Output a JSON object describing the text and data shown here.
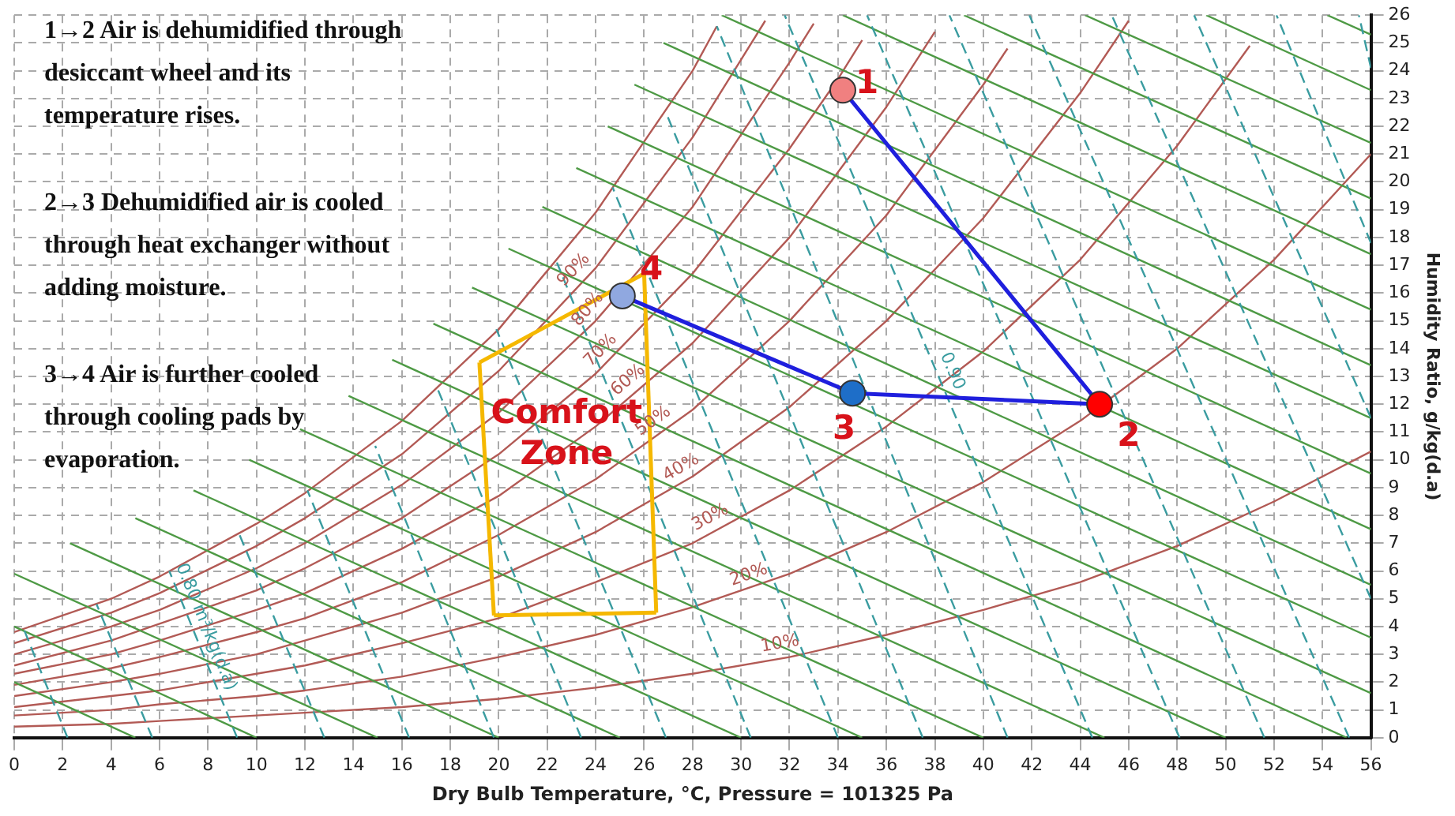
{
  "chart_data": {
    "type": "line",
    "xlabel": "Dry Bulb Temperature, °C, Pressure = 101325 Pa",
    "ylabel": "Humidity Ratio, g/kg(d.a)",
    "xlim": [
      0,
      56
    ],
    "xticks": [
      0,
      2,
      4,
      6,
      8,
      10,
      12,
      14,
      16,
      18,
      20,
      22,
      24,
      26,
      28,
      30,
      32,
      34,
      36,
      38,
      40,
      42,
      44,
      46,
      48,
      50,
      52,
      54,
      56
    ],
    "ylim": [
      0,
      26
    ],
    "yticks": [
      0,
      1,
      2,
      3,
      4,
      5,
      6,
      7,
      8,
      9,
      10,
      11,
      12,
      13,
      14,
      15,
      16,
      17,
      18,
      19,
      20,
      21,
      22,
      23,
      24,
      25,
      26
    ],
    "grid": true,
    "annotations": [
      "1→2 Air is dehumidified through desiccant wheel and its temperature rises.",
      "2→3 Dehumidified air is cooled through heat exchanger without adding moisture.",
      "3→4 Air is further cooled through cooling pads by evaporation.",
      {
        "text": "90%",
        "x": 23.5,
        "y": 16.5
      },
      {
        "text": "80%",
        "x": 24.1,
        "y": 15.1
      },
      {
        "text": "70%",
        "x": 24.6,
        "y": 13.6
      },
      {
        "text": "60%",
        "x": 25.7,
        "y": 12.5
      },
      {
        "text": "50%",
        "x": 26.7,
        "y": 11.0
      },
      {
        "text": "40%",
        "x": 27.8,
        "y": 9.3
      },
      {
        "text": "30%",
        "x": 29.0,
        "y": 7.5
      },
      {
        "text": "20%",
        "x": 30.5,
        "y": 5.4
      },
      {
        "text": "10%",
        "x": 31.7,
        "y": 2.9
      },
      {
        "text": "0.80 m³/kg(d.a)",
        "x": 7.4,
        "y": 3.8
      },
      {
        "text": "0.90",
        "x": 38.2,
        "y": 13.0
      },
      {
        "text": "1",
        "x": 35.2,
        "y": 23.5
      },
      {
        "text": "2",
        "x": 46.0,
        "y": 10.8
      },
      {
        "text": "3",
        "x": 34.6,
        "y": 12.4
      },
      {
        "text": "4",
        "x": 26.3,
        "y": 16.8
      },
      {
        "text": "Comfort Zone",
        "x": 22.8,
        "y": 10.9
      }
    ],
    "series": [
      {
        "color": "#b25a55",
        "x": [
          0,
          4,
          6,
          10,
          12,
          16,
          20,
          24,
          28,
          29
        ],
        "values": [
          3.8,
          5.0,
          5.8,
          7.7,
          8.8,
          11.4,
          14.7,
          18.9,
          24.0,
          25.6
        ]
      },
      {
        "color": "#b25a55",
        "x": [
          0,
          4,
          6,
          10,
          12,
          16,
          20,
          24,
          28,
          30,
          31
        ],
        "values": [
          3.4,
          4.5,
          5.2,
          6.9,
          7.9,
          10.2,
          13.2,
          16.9,
          21.6,
          24.4,
          25.8
        ]
      },
      {
        "color": "#b25a55",
        "x": [
          0,
          4,
          6,
          10,
          12,
          16,
          20,
          24,
          28,
          32,
          33
        ],
        "values": [
          3.0,
          4.0,
          4.6,
          6.1,
          7.0,
          9.1,
          11.7,
          15.0,
          19.1,
          24.3,
          25.7
        ]
      },
      {
        "color": "#b25a55",
        "x": [
          0,
          4,
          6,
          10,
          12,
          16,
          20,
          24,
          28,
          32,
          34,
          35
        ],
        "values": [
          2.6,
          3.5,
          4.1,
          5.3,
          6.1,
          7.9,
          10.2,
          13.1,
          16.7,
          21.2,
          23.7,
          25.1
        ]
      },
      {
        "color": "#b25a55",
        "x": [
          0,
          4,
          6,
          10,
          12,
          16,
          20,
          24,
          28,
          32,
          36,
          38
        ],
        "values": [
          2.3,
          3.0,
          3.5,
          4.6,
          5.2,
          6.8,
          8.7,
          11.2,
          14.2,
          18.0,
          22.7,
          25.4
        ]
      },
      {
        "color": "#b25a55",
        "x": [
          0,
          4,
          6,
          10,
          12,
          16,
          20,
          24,
          28,
          32,
          36,
          40,
          41
        ],
        "values": [
          1.9,
          2.5,
          2.9,
          3.8,
          4.3,
          5.6,
          7.3,
          9.3,
          11.8,
          15.0,
          18.8,
          23.5,
          24.8
        ]
      },
      {
        "color": "#b25a55",
        "x": [
          0,
          4,
          6,
          10,
          12,
          16,
          20,
          24,
          28,
          32,
          36,
          40,
          44,
          46
        ],
        "values": [
          1.5,
          2.0,
          2.3,
          3.0,
          3.5,
          4.5,
          5.8,
          7.4,
          9.4,
          11.9,
          15.0,
          18.7,
          23.2,
          25.8
        ]
      },
      {
        "color": "#b25a55",
        "x": [
          0,
          4,
          6,
          10,
          12,
          16,
          20,
          24,
          28,
          32,
          36,
          40,
          44,
          48,
          51
        ],
        "values": [
          1.1,
          1.5,
          1.7,
          2.3,
          2.6,
          3.4,
          4.3,
          5.6,
          7.0,
          8.9,
          11.2,
          13.9,
          17.2,
          21.3,
          24.9
        ]
      },
      {
        "color": "#b25a55",
        "x": [
          0,
          4,
          6,
          10,
          12,
          16,
          20,
          24,
          28,
          32,
          36,
          40,
          44,
          48,
          52,
          56
        ],
        "values": [
          0.8,
          1.0,
          1.2,
          1.5,
          1.7,
          2.2,
          2.9,
          3.7,
          4.7,
          5.9,
          7.4,
          9.2,
          11.4,
          14.0,
          17.2,
          21.0
        ]
      },
      {
        "color": "#b25a55",
        "x": [
          0,
          4,
          6,
          10,
          12,
          16,
          20,
          24,
          28,
          32,
          36,
          40,
          44,
          48,
          52,
          56
        ],
        "values": [
          0.4,
          0.5,
          0.6,
          0.8,
          0.9,
          1.1,
          1.4,
          1.8,
          2.3,
          2.9,
          3.7,
          4.6,
          5.6,
          6.9,
          8.5,
          10.3
        ]
      },
      {
        "color": "#4e9a45",
        "x": [
          0,
          5
        ],
        "values": [
          2.0,
          0
        ]
      },
      {
        "color": "#4e9a45",
        "x": [
          0,
          10
        ],
        "values": [
          4.0,
          0
        ]
      },
      {
        "color": "#4e9a45",
        "x": [
          0,
          15
        ],
        "values": [
          5.9,
          0
        ]
      },
      {
        "color": "#4e9a45",
        "x": [
          2.3,
          20
        ],
        "values": [
          7.0,
          0
        ]
      },
      {
        "color": "#4e9a45",
        "x": [
          5.0,
          25
        ],
        "values": [
          7.9,
          0
        ]
      },
      {
        "color": "#4e9a45",
        "x": [
          7.4,
          30
        ],
        "values": [
          8.9,
          0
        ]
      },
      {
        "color": "#4e9a45",
        "x": [
          9.7,
          35
        ],
        "values": [
          10.0,
          0
        ]
      },
      {
        "color": "#4e9a45",
        "x": [
          11.8,
          40
        ],
        "values": [
          11.1,
          0
        ]
      },
      {
        "color": "#4e9a45",
        "x": [
          13.8,
          45
        ],
        "values": [
          12.3,
          0
        ]
      },
      {
        "color": "#4e9a45",
        "x": [
          15.6,
          50
        ],
        "values": [
          13.6,
          0
        ]
      },
      {
        "color": "#4e9a45",
        "x": [
          17.3,
          55
        ],
        "values": [
          14.9,
          0
        ]
      },
      {
        "color": "#4e9a45",
        "x": [
          18.9,
          56
        ],
        "values": [
          16.2,
          1.6
        ]
      },
      {
        "color": "#4e9a45",
        "x": [
          20.4,
          56
        ],
        "values": [
          17.6,
          3.6
        ]
      },
      {
        "color": "#4e9a45",
        "x": [
          21.8,
          56
        ],
        "values": [
          19.1,
          5.5
        ]
      },
      {
        "color": "#4e9a45",
        "x": [
          23.2,
          56
        ],
        "values": [
          20.5,
          7.5
        ]
      },
      {
        "color": "#4e9a45",
        "x": [
          24.5,
          56
        ],
        "values": [
          22.0,
          9.5
        ]
      },
      {
        "color": "#4e9a45",
        "x": [
          25.6,
          56
        ],
        "values": [
          23.5,
          11.5
        ]
      },
      {
        "color": "#4e9a45",
        "x": [
          26.8,
          56
        ],
        "values": [
          25.0,
          13.4
        ]
      },
      {
        "color": "#4e9a45",
        "x": [
          29.2,
          56
        ],
        "values": [
          26,
          15.4
        ]
      },
      {
        "color": "#4e9a45",
        "x": [
          34.2,
          56
        ],
        "values": [
          26,
          17.4
        ]
      },
      {
        "color": "#4e9a45",
        "x": [
          39.2,
          56
        ],
        "values": [
          26,
          19.4
        ]
      },
      {
        "color": "#4e9a45",
        "x": [
          44.2,
          56
        ],
        "values": [
          26,
          21.4
        ]
      },
      {
        "color": "#4e9a45",
        "x": [
          49.2,
          56
        ],
        "values": [
          26,
          23.3
        ]
      },
      {
        "color": "#4e9a45",
        "x": [
          54.2,
          56
        ],
        "values": [
          26,
          25.3
        ]
      },
      {
        "color": "#3a9ca0",
        "line_style": "dashed",
        "x": [
          2.2,
          0.4
        ],
        "values": [
          0,
          3.9
        ]
      },
      {
        "color": "#3a9ca0",
        "line_style": "dashed",
        "x": [
          5.7,
          3.4
        ],
        "values": [
          0,
          4.8
        ]
      },
      {
        "color": "#3a9ca0",
        "line_style": "dashed",
        "x": [
          9.2,
          6.4
        ],
        "values": [
          0,
          6.0
        ]
      },
      {
        "color": "#3a9ca0",
        "line_style": "dashed",
        "x": [
          12.8,
          9.3
        ],
        "values": [
          0,
          7.3
        ]
      },
      {
        "color": "#3a9ca0",
        "line_style": "dashed",
        "x": [
          16.3,
          12.1
        ],
        "values": [
          0,
          8.9
        ]
      },
      {
        "color": "#3a9ca0",
        "line_style": "dashed",
        "x": [
          19.8,
          14.9
        ],
        "values": [
          0,
          10.5
        ]
      },
      {
        "color": "#3a9ca0",
        "line_style": "dashed",
        "x": [
          23.4,
          17.5
        ],
        "values": [
          0,
          12.5
        ]
      },
      {
        "color": "#3a9ca0",
        "line_style": "dashed",
        "x": [
          26.9,
          19.9
        ],
        "values": [
          0,
          14.7
        ]
      },
      {
        "color": "#3a9ca0",
        "line_style": "dashed",
        "x": [
          30.4,
          22.4
        ],
        "values": [
          0,
          17.1
        ]
      },
      {
        "color": "#3a9ca0",
        "line_style": "dashed",
        "x": [
          34.0,
          24.7
        ],
        "values": [
          0,
          19.8
        ]
      },
      {
        "color": "#3a9ca0",
        "line_style": "dashed",
        "x": [
          37.5,
          26.9
        ],
        "values": [
          0,
          22.5
        ]
      },
      {
        "color": "#3a9ca0",
        "line_style": "dashed",
        "x": [
          41.0,
          29.0
        ],
        "values": [
          0,
          25.6
        ]
      },
      {
        "color": "#3a9ca0",
        "line_style": "dashed",
        "x": [
          44.5,
          31.8
        ],
        "values": [
          0,
          26
        ]
      },
      {
        "color": "#3a9ca0",
        "line_style": "dashed",
        "x": [
          48.1,
          35.2
        ],
        "values": [
          0,
          26
        ]
      },
      {
        "color": "#3a9ca0",
        "line_style": "dashed",
        "x": [
          51.6,
          38.6
        ],
        "values": [
          0,
          26
        ]
      },
      {
        "color": "#3a9ca0",
        "line_style": "dashed",
        "x": [
          55.1,
          41.9
        ],
        "values": [
          0,
          26
        ]
      },
      {
        "color": "#3a9ca0",
        "line_style": "dashed",
        "x": [
          56,
          45.3
        ],
        "values": [
          5.0,
          26
        ]
      },
      {
        "color": "#3a9ca0",
        "line_style": "dashed",
        "x": [
          56,
          48.7
        ],
        "values": [
          11.5,
          26
        ]
      },
      {
        "color": "#3a9ca0",
        "line_style": "dashed",
        "x": [
          56,
          52.1
        ],
        "values": [
          17.8,
          26
        ]
      },
      {
        "color": "#3a9ca0",
        "line_style": "dashed",
        "x": [
          56,
          55.5
        ],
        "values": [
          24.1,
          26
        ]
      },
      {
        "color": "#f5b800",
        "x": [
          19.2,
          26.0
        ],
        "values": [
          13.5,
          16.7
        ]
      },
      {
        "color": "#f5b800",
        "x": [
          26.0,
          26.5
        ],
        "values": [
          16.7,
          4.5
        ]
      },
      {
        "color": "#f5b800",
        "x": [
          19.8,
          26.5
        ],
        "values": [
          4.4,
          4.5
        ]
      },
      {
        "color": "#f5b800",
        "x": [
          19.2,
          19.8
        ],
        "values": [
          13.5,
          4.4
        ]
      },
      {
        "color": "#1f1fdd",
        "x": [
          34.2,
          44.8,
          34.6,
          25.1
        ],
        "values": [
          23.3,
          12.0,
          12.4,
          15.9
        ]
      },
      {
        "type": "scatter",
        "marker": "circle",
        "colors": [
          "#f08080",
          "#ff0000",
          "#1e6ec8",
          "#90a8e0"
        ],
        "x": [
          34.2,
          44.8,
          34.6,
          25.1
        ],
        "values": [
          23.3,
          12.0,
          12.4,
          15.9
        ]
      }
    ]
  }
}
